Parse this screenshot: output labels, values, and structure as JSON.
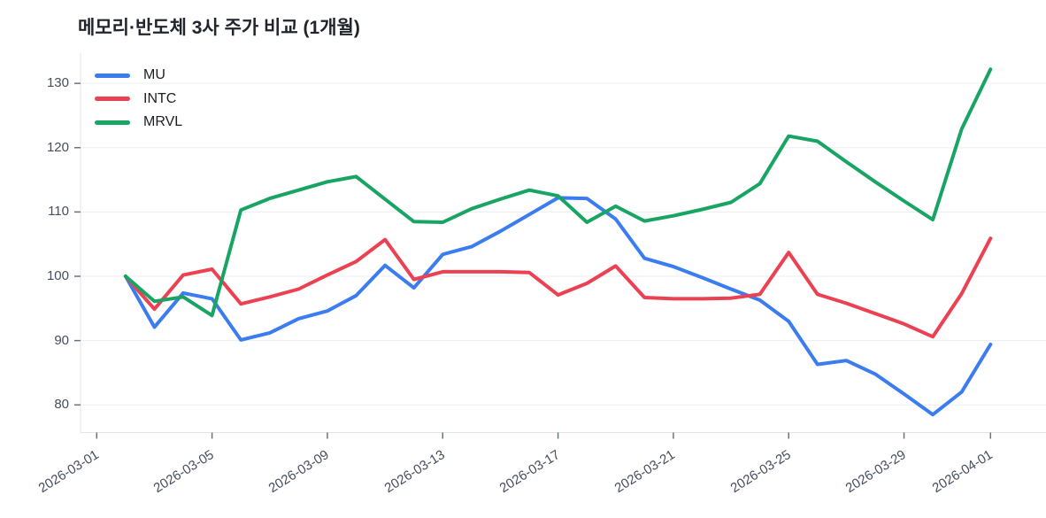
{
  "title": "메모리·반도체 3사 주가 비교 (1개월)",
  "chart_data": {
    "type": "line",
    "title": "메모리·반도체 3사 주가 비교 (1개월)",
    "xlabel": "",
    "ylabel": "",
    "x_start": "2026-03-01",
    "x": [
      "2026-03-02",
      "2026-03-03",
      "2026-03-04",
      "2026-03-05",
      "2026-03-06",
      "2026-03-07",
      "2026-03-08",
      "2026-03-09",
      "2026-03-10",
      "2026-03-11",
      "2026-03-12",
      "2026-03-13",
      "2026-03-14",
      "2026-03-15",
      "2026-03-16",
      "2026-03-17",
      "2026-03-18",
      "2026-03-19",
      "2026-03-20",
      "2026-03-21",
      "2026-03-22",
      "2026-03-23",
      "2026-03-24",
      "2026-03-25",
      "2026-03-26",
      "2026-03-27",
      "2026-03-28",
      "2026-03-29",
      "2026-03-30",
      "2026-03-31",
      "2026-04-01"
    ],
    "series": [
      {
        "name": "MU",
        "color": "#3B7CF0",
        "values": [
          100,
          92.1,
          97.4,
          96.5,
          90.1,
          91.2,
          93.4,
          94.6,
          97.0,
          101.7,
          98.2,
          103.4,
          104.6,
          107.0,
          109.6,
          112.2,
          112.1,
          108.9,
          102.8,
          101.5,
          99.8,
          98.0,
          96.3,
          93.0,
          86.3,
          86.9,
          84.8,
          81.7,
          78.5,
          82.0,
          89.4
        ]
      },
      {
        "name": "INTC",
        "color": "#EB4152",
        "values": [
          100,
          94.9,
          100.2,
          101.1,
          95.7,
          96.8,
          98.0,
          100.2,
          102.3,
          105.7,
          99.5,
          100.7,
          100.7,
          100.7,
          100.6,
          97.1,
          98.9,
          101.6,
          96.7,
          96.5,
          96.5,
          96.6,
          97.2,
          103.7,
          97.2,
          95.8,
          94.2,
          92.6,
          90.6,
          97.3,
          105.9
        ]
      },
      {
        "name": "MRVL",
        "color": "#18A463",
        "values": [
          100,
          96.1,
          96.8,
          93.9,
          110.3,
          112.1,
          113.4,
          114.7,
          115.5,
          112.0,
          108.5,
          108.4,
          110.5,
          112.0,
          113.4,
          112.5,
          108.4,
          110.9,
          108.6,
          109.4,
          110.4,
          111.5,
          114.4,
          121.8,
          121.0,
          117.8,
          114.7,
          111.7,
          108.8,
          122.9,
          132.2
        ]
      }
    ],
    "ylim": [
      75.7,
      134.7
    ],
    "y_ticks": [
      80,
      90,
      100,
      110,
      120,
      130
    ],
    "x_tick_labels": [
      "2026-03-01",
      "2026-03-05",
      "2026-03-09",
      "2026-03-13",
      "2026-03-17",
      "2026-03-21",
      "2026-03-25",
      "2026-03-29",
      "2026-04-01"
    ],
    "grid": "horizontal",
    "legend_position": "top-left-inside",
    "colors": {
      "grid": "#ededf0",
      "axis": "#e2e4e8",
      "tick": "#6b7380",
      "tick_label": "#454e5e",
      "title": "#20242c",
      "legend_label": "#1b1e24"
    }
  }
}
